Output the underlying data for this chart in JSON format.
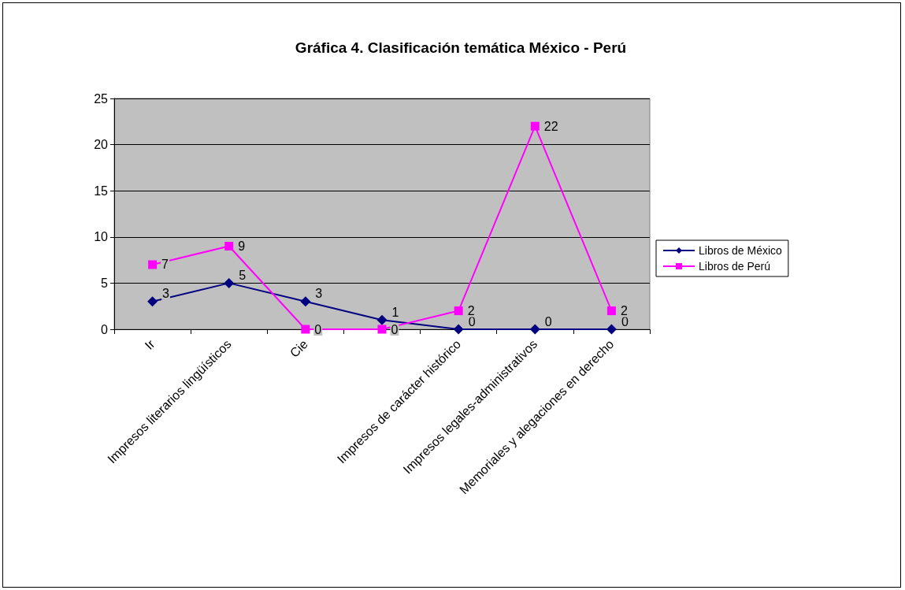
{
  "chart_data": {
    "type": "line",
    "title": "Gráfica 4. Clasificación temática México - Perú",
    "categories": [
      "Ir",
      "Impresos literarios lingüísticos",
      "Cie",
      null,
      "Impresos de carácter histórico",
      "Impresos legales-administrativos",
      "Memoriales y alegaciones en derecho"
    ],
    "series": [
      {
        "name": "Libros de México",
        "color": "#000080",
        "marker": "diamond",
        "values": [
          3,
          5,
          3,
          1,
          0,
          0,
          0
        ]
      },
      {
        "name": "Libros de Perú",
        "color": "#ff00ff",
        "marker": "square",
        "values": [
          7,
          9,
          0,
          0,
          2,
          22,
          2
        ]
      }
    ],
    "ylim": [
      0,
      25
    ],
    "yticks": [
      0,
      5,
      10,
      15,
      20,
      25
    ],
    "grid": "y",
    "legend": "right",
    "data_labels": true
  }
}
